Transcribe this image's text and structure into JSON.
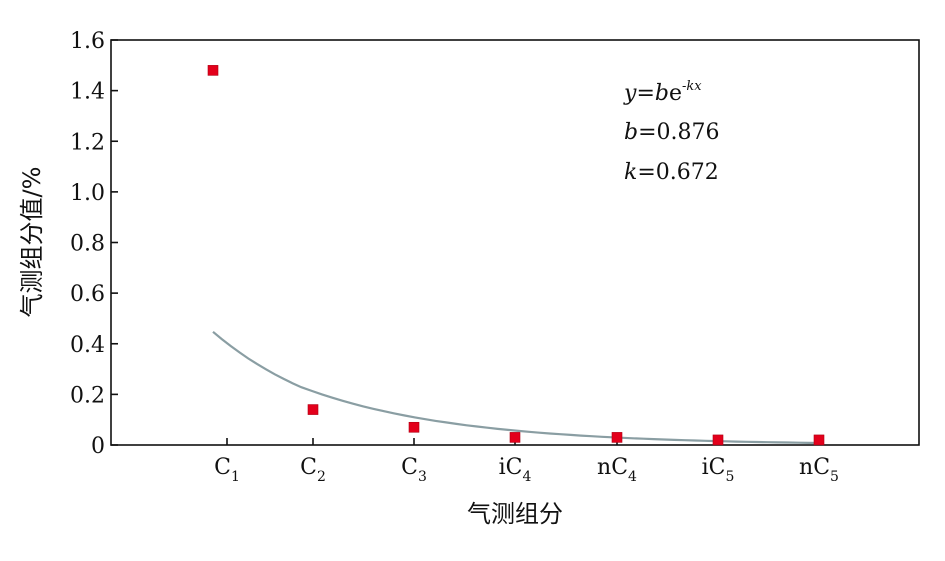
{
  "chart_data": {
    "type": "scatter",
    "xlabel": "气测组分",
    "ylabel": "气测组分值/%",
    "ylim": [
      0,
      1.6
    ],
    "yticks": [
      "0",
      "0.2",
      "0.4",
      "0.6",
      "0.8",
      "1.0",
      "1.2",
      "1.4",
      "1.6"
    ],
    "categories": [
      {
        "base": "C",
        "prefix": "",
        "sub": "1"
      },
      {
        "base": "C",
        "prefix": "",
        "sub": "2"
      },
      {
        "base": "C",
        "prefix": "",
        "sub": "3"
      },
      {
        "base": "C",
        "prefix": "i",
        "sub": "4"
      },
      {
        "base": "C",
        "prefix": "n",
        "sub": "4"
      },
      {
        "base": "C",
        "prefix": "i",
        "sub": "5"
      },
      {
        "base": "C",
        "prefix": "n",
        "sub": "5"
      }
    ],
    "series": [
      {
        "values": [
          1.48,
          0.14,
          0.07,
          0.03,
          0.03,
          0.02,
          0.02
        ],
        "color": "#e3001b",
        "marker": "square"
      }
    ],
    "fit": {
      "color": "#8a9ea3",
      "b": 0.876,
      "k": 0.672
    },
    "annotation": {
      "equation": {
        "y": "y",
        "eq": "=",
        "b": "b",
        "e": "e",
        "exp": "-kx"
      },
      "b_line": {
        "var": "b",
        "text": "=0.876"
      },
      "k_line": {
        "var": "k",
        "text": "=0.672"
      }
    },
    "grid": false,
    "legend": "none"
  }
}
